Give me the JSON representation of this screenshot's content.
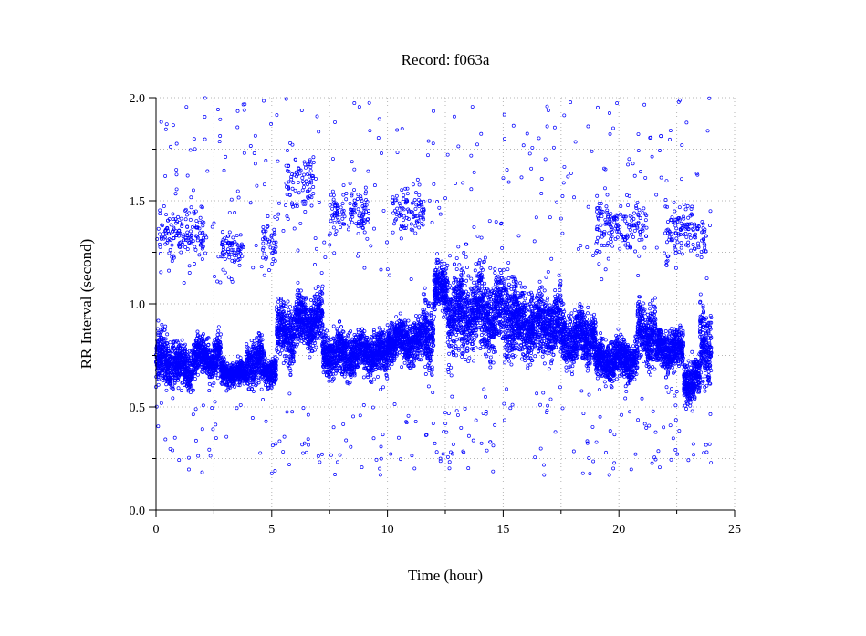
{
  "chart_data": {
    "type": "scatter",
    "title": "Record:  f063a",
    "xlabel": "Time (hour)",
    "ylabel": "RR Interval (second)",
    "xlim": [
      0,
      25
    ],
    "ylim": [
      0.0,
      2.0
    ],
    "xticks": [
      0,
      5,
      10,
      15,
      20,
      25
    ],
    "xtick_labels": [
      "0",
      "5",
      "10",
      "15",
      "20",
      "25"
    ],
    "yticks": [
      0.0,
      0.5,
      1.0,
      1.5,
      2.0
    ],
    "ytick_labels": [
      "0.0",
      "0.5",
      "1.0",
      "1.5",
      "2.0"
    ],
    "grid": true,
    "marker_color": "#0000ff",
    "series": [
      {
        "segments": [
          {
            "t0": 0.0,
            "t1": 0.8,
            "center": 0.72,
            "spread": 0.09
          },
          {
            "t0": 0.8,
            "t1": 1.6,
            "center": 0.7,
            "spread": 0.07
          },
          {
            "t0": 1.6,
            "t1": 2.8,
            "center": 0.74,
            "spread": 0.07
          },
          {
            "t0": 2.8,
            "t1": 3.9,
            "center": 0.66,
            "spread": 0.04
          },
          {
            "t0": 3.9,
            "t1": 4.6,
            "center": 0.72,
            "spread": 0.08
          },
          {
            "t0": 4.6,
            "t1": 5.2,
            "center": 0.68,
            "spread": 0.05
          },
          {
            "t0": 5.2,
            "t1": 6.0,
            "center": 0.86,
            "spread": 0.1
          },
          {
            "t0": 6.0,
            "t1": 7.2,
            "center": 0.92,
            "spread": 0.09
          },
          {
            "t0": 7.2,
            "t1": 8.5,
            "center": 0.76,
            "spread": 0.08
          },
          {
            "t0": 8.5,
            "t1": 10.0,
            "center": 0.76,
            "spread": 0.07
          },
          {
            "t0": 10.0,
            "t1": 11.5,
            "center": 0.82,
            "spread": 0.07
          },
          {
            "t0": 11.5,
            "t1": 12.0,
            "center": 0.86,
            "spread": 0.12
          },
          {
            "t0": 12.0,
            "t1": 12.6,
            "center": 1.07,
            "spread": 0.08
          },
          {
            "t0": 12.6,
            "t1": 14.0,
            "center": 0.96,
            "spread": 0.13
          },
          {
            "t0": 14.0,
            "t1": 15.6,
            "center": 0.95,
            "spread": 0.14
          },
          {
            "t0": 15.6,
            "t1": 17.5,
            "center": 0.9,
            "spread": 0.11
          },
          {
            "t0": 17.5,
            "t1": 19.0,
            "center": 0.84,
            "spread": 0.09
          },
          {
            "t0": 19.0,
            "t1": 20.8,
            "center": 0.73,
            "spread": 0.07
          },
          {
            "t0": 20.8,
            "t1": 21.6,
            "center": 0.86,
            "spread": 0.1
          },
          {
            "t0": 21.6,
            "t1": 22.8,
            "center": 0.78,
            "spread": 0.07
          },
          {
            "t0": 22.8,
            "t1": 23.5,
            "center": 0.64,
            "spread": 0.07
          },
          {
            "t0": 23.5,
            "t1": 24.0,
            "center": 0.82,
            "spread": 0.13
          }
        ],
        "upper_clusters": [
          {
            "t0": 0.1,
            "t1": 2.2,
            "center": 1.34,
            "spread": 0.09
          },
          {
            "t0": 2.8,
            "t1": 3.8,
            "center": 1.27,
            "spread": 0.06
          },
          {
            "t0": 4.6,
            "t1": 5.2,
            "center": 1.3,
            "spread": 0.09
          },
          {
            "t0": 5.6,
            "t1": 6.8,
            "center": 1.6,
            "spread": 0.1
          },
          {
            "t0": 7.5,
            "t1": 9.2,
            "center": 1.44,
            "spread": 0.08
          },
          {
            "t0": 10.2,
            "t1": 11.6,
            "center": 1.45,
            "spread": 0.09
          },
          {
            "t0": 19.0,
            "t1": 21.2,
            "center": 1.38,
            "spread": 0.1
          },
          {
            "t0": 22.0,
            "t1": 23.8,
            "center": 1.35,
            "spread": 0.1
          }
        ],
        "outlier_range": [
          0.17,
          2.0
        ],
        "extent": [
          0.0,
          24.0
        ]
      }
    ]
  }
}
